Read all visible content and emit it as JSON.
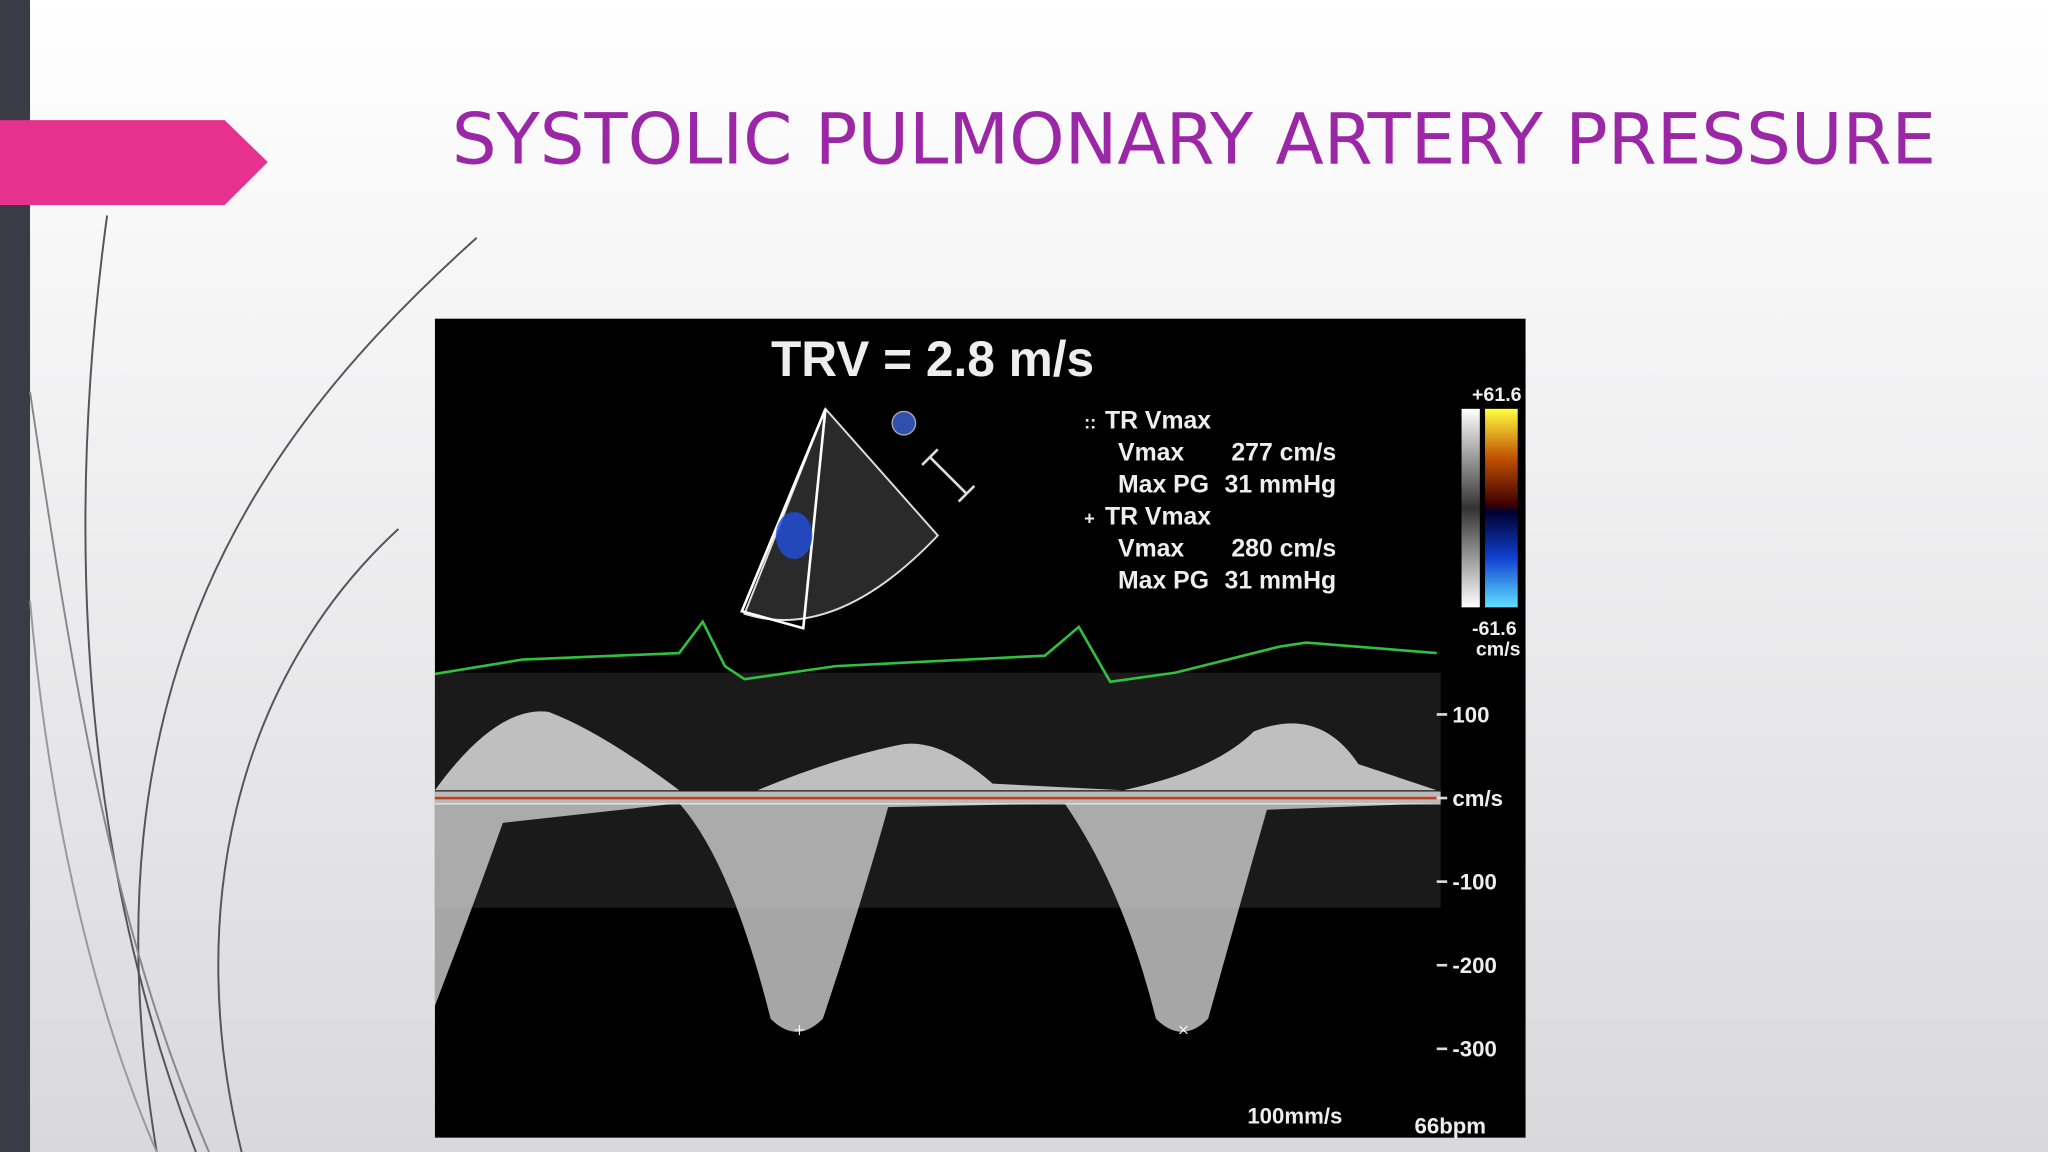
{
  "title": "SYSTOLIC PULMONARY ARTERY PRESSURE",
  "image": {
    "heading": "TRV = 2.8 m/s",
    "measurements": [
      {
        "label": "TR Vmax",
        "rows": [
          [
            "Vmax",
            "277 cm/s"
          ],
          [
            "Max PG",
            "31 mmHg"
          ]
        ]
      },
      {
        "label": "TR Vmax",
        "rows": [
          [
            "Vmax",
            "280 cm/s"
          ],
          [
            "Max PG",
            "31 mmHg"
          ]
        ]
      }
    ],
    "color_scale": {
      "top": "+61.6",
      "bottom": "-61.6",
      "unit": "cm/s"
    },
    "velocity_axis": [
      "100",
      "cm/s",
      "-100",
      "-200",
      "-300"
    ],
    "sweep": "100mm/s",
    "heart_rate": "66bpm"
  }
}
